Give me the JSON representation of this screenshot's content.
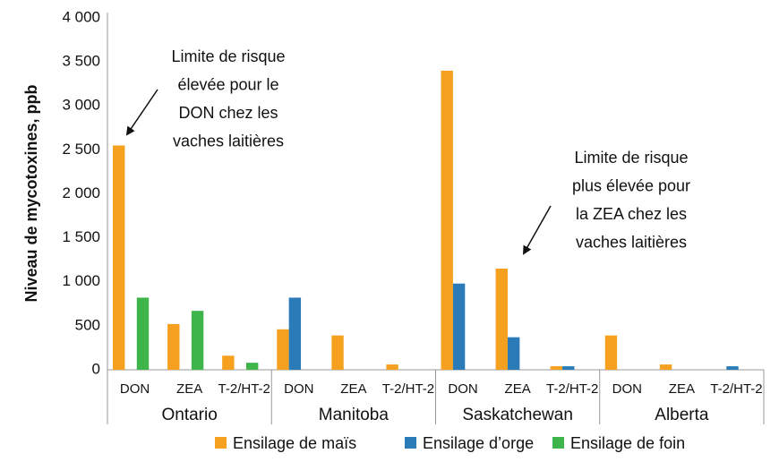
{
  "chart_data": {
    "type": "bar",
    "y_label": "Niveau de mycotoxines, ppb",
    "categories": [
      "DON",
      "ZEA",
      "T-2/HT-2",
      "DON",
      "ZEA",
      "T-2/HT-2",
      "DON",
      "ZEA",
      "T-2/HT-2",
      "DON",
      "ZEA",
      "T-2/HT-2"
    ],
    "category_groups": [
      "Ontario",
      "Manitoba",
      "Saskatchewan",
      "Alberta"
    ],
    "series": [
      {
        "name": "Ensilage de maïs",
        "color": "#f5a01e",
        "values": [
          2550,
          520,
          160,
          460,
          390,
          60,
          3400,
          1150,
          40,
          390,
          60,
          null
        ]
      },
      {
        "name": "Ensilage d’orge",
        "color": "#2b7bb9",
        "values": [
          null,
          null,
          null,
          820,
          null,
          null,
          980,
          370,
          40,
          null,
          null,
          40
        ]
      },
      {
        "name": "Ensilage de foin",
        "color": "#3db54a",
        "values": [
          820,
          670,
          80,
          null,
          null,
          null,
          null,
          null,
          null,
          null,
          null,
          null
        ]
      }
    ],
    "ylim": [
      0,
      4000
    ],
    "yticks": [
      0,
      500,
      {
        "value": 1000,
        "label": "1 000"
      },
      {
        "value": 1500,
        "label": "1 500"
      },
      {
        "value": 2000,
        "label": "2 000"
      },
      {
        "value": 2500,
        "label": "2 500"
      },
      {
        "value": 3000,
        "label": "3 000"
      },
      {
        "value": 3500,
        "label": "3 500"
      },
      {
        "value": 4000,
        "label": "4 000"
      }
    ],
    "grid": false,
    "legend": "bottom",
    "annotations": [
      {
        "lines": [
          "Limite de risque",
          "élevée pour le",
          "DON chez les",
          "vaches laitières"
        ]
      },
      {
        "lines": [
          "Limite de risque",
          "plus élevée pour",
          "la ZEA chez les",
          "vaches laitières"
        ]
      }
    ]
  }
}
